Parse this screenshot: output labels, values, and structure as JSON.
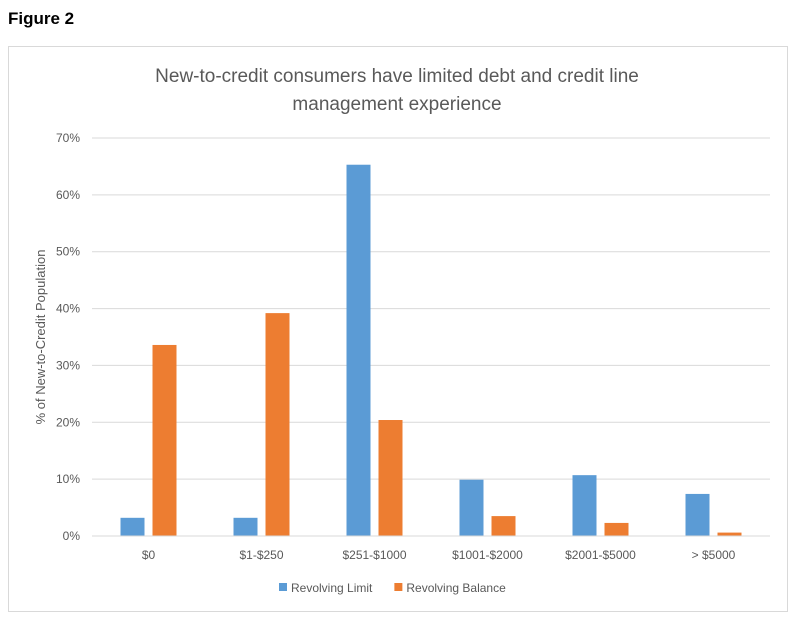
{
  "figure_label": "Figure 2",
  "chart_data": {
    "type": "bar",
    "title_lines": [
      "New-to-credit consumers have limited debt and credit line",
      "management experience"
    ],
    "xlabel": "",
    "ylabel": "% of New-to-Credit Population",
    "categories": [
      "$0",
      "$1-$250",
      "$251-$1000",
      "$1001-$2000",
      "$2001-$5000",
      "> $5000"
    ],
    "ylim": [
      0,
      70
    ],
    "yticks": [
      "0%",
      "10%",
      "20%",
      "30%",
      "40%",
      "50%",
      "60%",
      "70%"
    ],
    "grid": true,
    "legend_position": "bottom",
    "series": [
      {
        "name": "Revolving Limit",
        "color": "#5b9bd5",
        "values": [
          3.2,
          3.2,
          65.3,
          9.9,
          10.7,
          7.4
        ]
      },
      {
        "name": "Revolving Balance",
        "color": "#ed7d31",
        "values": [
          33.6,
          39.2,
          20.4,
          3.5,
          2.3,
          0.6
        ]
      }
    ]
  }
}
